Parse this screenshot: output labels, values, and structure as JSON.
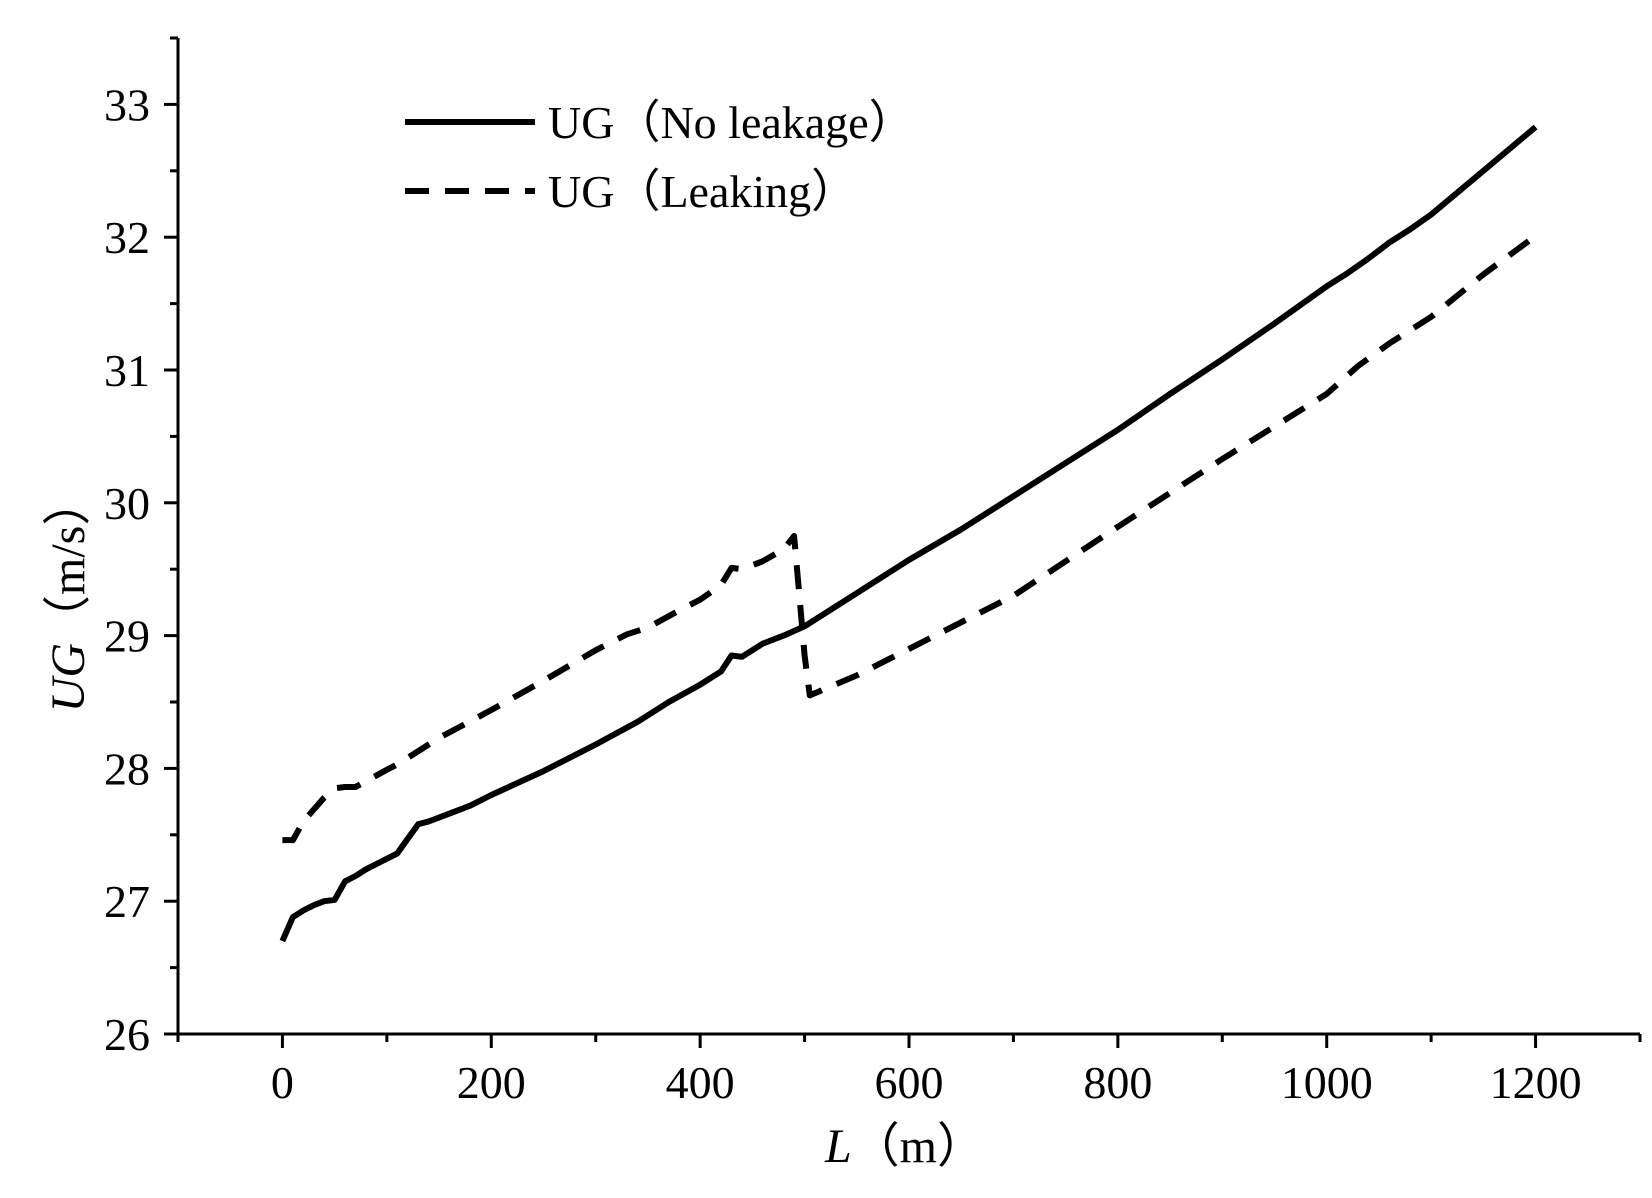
{
  "chart_data": {
    "type": "line",
    "xlabel_var": "L",
    "xlabel_unit": "（m）",
    "ylabel_var": "UG",
    "ylabel_unit": "（m/s）",
    "xlim": [
      -100,
      1300
    ],
    "ylim": [
      26,
      33.5
    ],
    "xticks": [
      0,
      200,
      400,
      600,
      800,
      1000,
      1200
    ],
    "xtick_labels": [
      "0",
      "200",
      "400",
      "600",
      "800",
      "1000",
      "1200"
    ],
    "xminor_ticks": [
      -100,
      100,
      300,
      500,
      700,
      900,
      1100,
      1300
    ],
    "yticks": [
      26,
      27,
      28,
      29,
      30,
      31,
      32,
      33
    ],
    "ytick_labels": [
      "26",
      "27",
      "28",
      "29",
      "30",
      "31",
      "32",
      "33"
    ],
    "yminor_ticks": [
      26.5,
      27.5,
      28.5,
      29.5,
      30.5,
      31.5,
      32.5,
      33.5
    ],
    "grid": false,
    "legend_position": "top-left",
    "series": [
      {
        "name": "UG（No leakage）",
        "style": "solid",
        "color": "#000000",
        "x": [
          0,
          10,
          20,
          30,
          40,
          50,
          60,
          70,
          80,
          90,
          100,
          110,
          120,
          130,
          140,
          160,
          180,
          200,
          250,
          300,
          340,
          370,
          400,
          420,
          430,
          440,
          460,
          480,
          500,
          550,
          600,
          650,
          700,
          750,
          800,
          850,
          900,
          950,
          1000,
          1020,
          1040,
          1060,
          1080,
          1100,
          1150,
          1200
        ],
        "y": [
          26.7,
          26.88,
          26.93,
          26.97,
          27.0,
          27.01,
          27.15,
          27.19,
          27.24,
          27.28,
          27.32,
          27.36,
          27.47,
          27.58,
          27.6,
          27.66,
          27.72,
          27.8,
          27.98,
          28.18,
          28.35,
          28.5,
          28.63,
          28.73,
          28.85,
          28.84,
          28.94,
          29.0,
          29.07,
          29.32,
          29.57,
          29.8,
          30.05,
          30.3,
          30.55,
          30.82,
          31.08,
          31.35,
          31.63,
          31.73,
          31.84,
          31.96,
          32.06,
          32.17,
          32.5,
          32.83
        ]
      },
      {
        "name": "UG（Leaking）",
        "style": "dashed",
        "color": "#000000",
        "x": [
          0,
          10,
          20,
          40,
          50,
          60,
          70,
          100,
          110,
          150,
          200,
          250,
          300,
          330,
          350,
          380,
          400,
          420,
          430,
          440,
          460,
          480,
          490,
          495,
          500,
          505,
          550,
          600,
          650,
          700,
          800,
          900,
          1000,
          1010,
          1030,
          1060,
          1100,
          1150,
          1200
        ],
        "y": [
          27.46,
          27.46,
          27.6,
          27.78,
          27.85,
          27.86,
          27.86,
          27.99,
          28.03,
          28.23,
          28.44,
          28.66,
          28.89,
          29.01,
          29.06,
          29.19,
          29.27,
          29.38,
          29.51,
          29.5,
          29.56,
          29.65,
          29.75,
          29.3,
          28.85,
          28.55,
          28.7,
          28.9,
          29.1,
          29.3,
          29.82,
          30.33,
          30.82,
          30.89,
          31.03,
          31.2,
          31.4,
          31.72,
          32.01
        ]
      }
    ]
  }
}
